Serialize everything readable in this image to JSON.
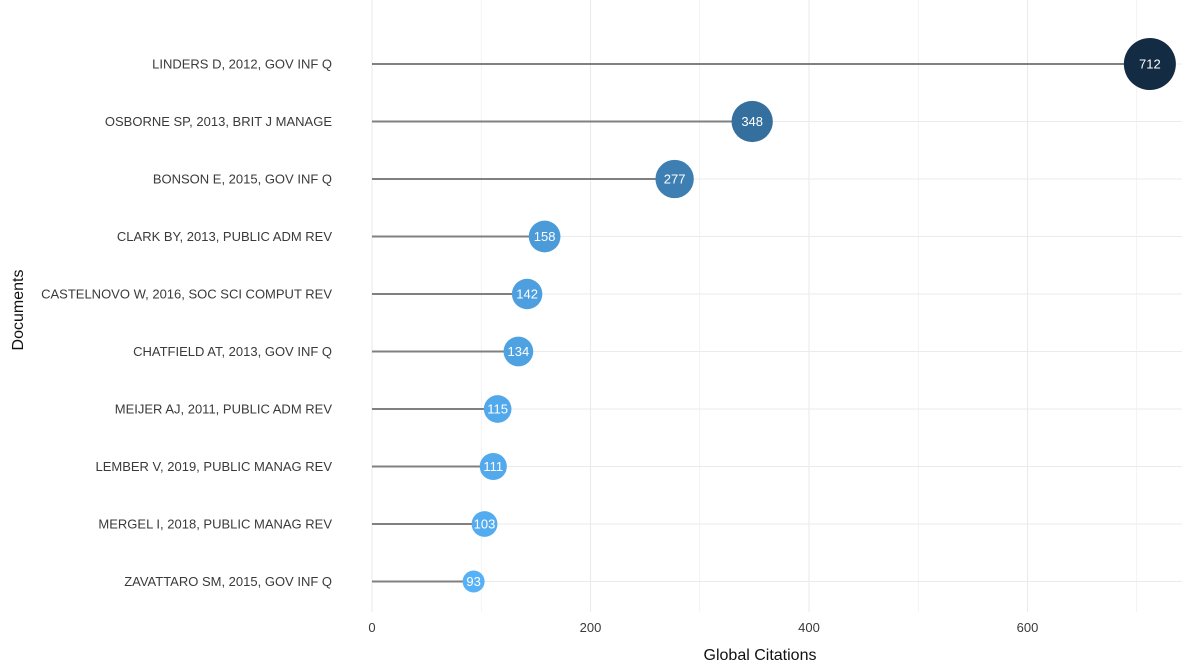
{
  "chart_data": {
    "type": "lollipop",
    "title": "",
    "xlabel": "Global Citations",
    "ylabel": "Documents",
    "xlim": [
      0,
      740
    ],
    "xticks": [
      0,
      200,
      400,
      600
    ],
    "grid": true,
    "categories": [
      "LINDERS D, 2012, GOV INF Q",
      "OSBORNE SP, 2013, BRIT J MANAGE",
      "BONSON E, 2015, GOV INF Q",
      "CLARK BY, 2013, PUBLIC ADM REV",
      "CASTELNOVO W, 2016, SOC SCI COMPUT REV",
      "CHATFIELD AT, 2013, GOV INF Q",
      "MEIJER AJ, 2011, PUBLIC ADM REV",
      "LEMBER V, 2019, PUBLIC MANAG REV",
      "MERGEL I, 2018, PUBLIC MANAG REV",
      "ZAVATTARO SM, 2015, GOV INF Q"
    ],
    "values": [
      712,
      348,
      277,
      158,
      142,
      134,
      115,
      111,
      103,
      93
    ],
    "colors": {
      "low": "#56B1F7",
      "mid": "#3B79AE",
      "high": "#132B43",
      "stem": "#808080",
      "grid": "#EBEBEB"
    }
  }
}
